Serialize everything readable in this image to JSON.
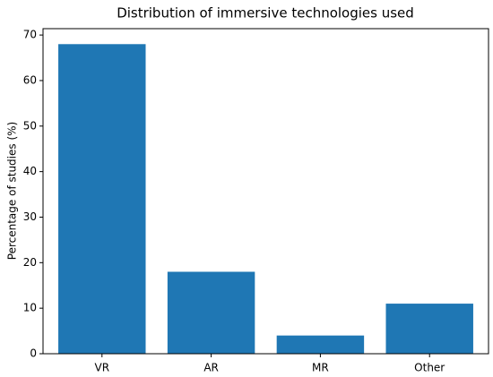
{
  "chart_data": {
    "type": "bar",
    "title": "Distribution of immersive technologies used",
    "y_label": "Percentage of studies (%)",
    "categories": [
      "VR",
      "AR",
      "MR",
      "Other"
    ],
    "values": [
      68,
      18,
      4,
      11
    ],
    "color": "#1f77b4",
    "ylim": [
      0,
      71.4
    ],
    "yticks": [
      0,
      10,
      20,
      30,
      40,
      50,
      60,
      70
    ],
    "grid": false
  }
}
